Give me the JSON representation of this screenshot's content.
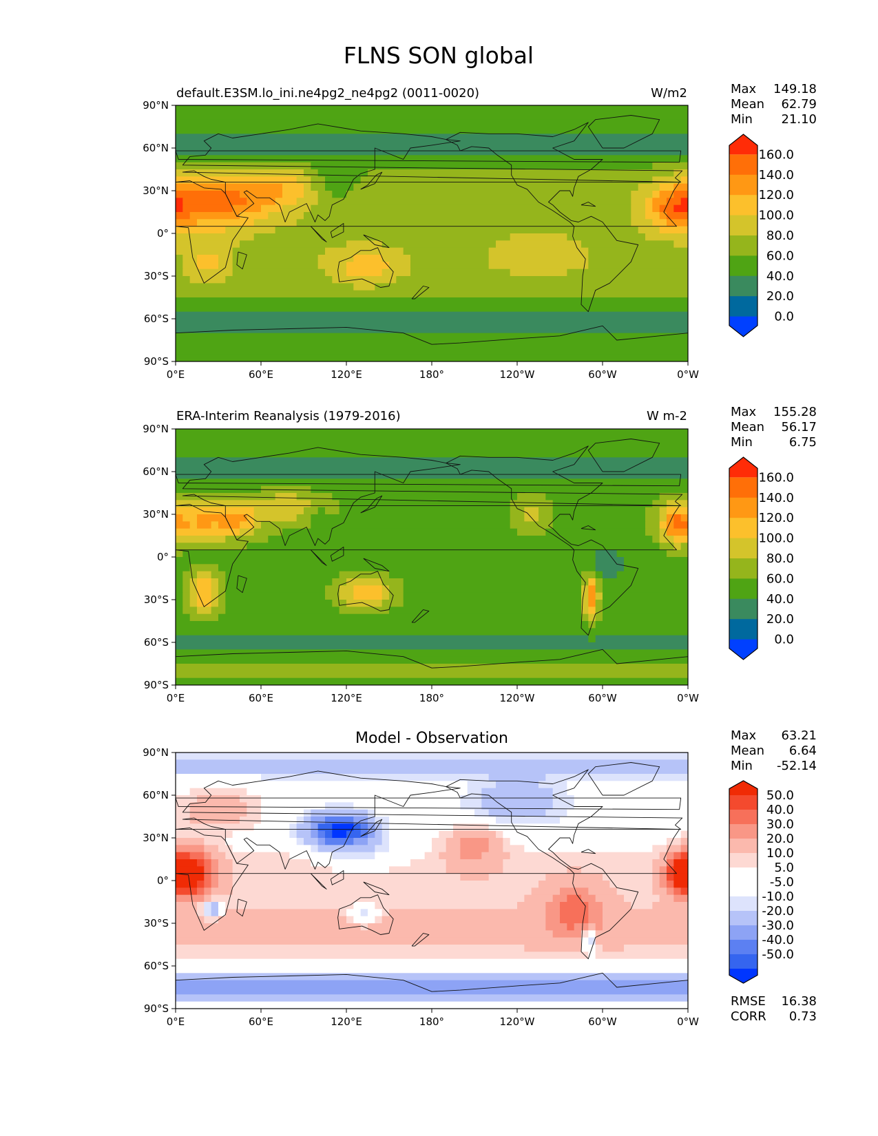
{
  "title": "FLNS SON global",
  "axis_ticks": {
    "lat": [
      "90°N",
      "60°N",
      "30°N",
      "0°",
      "30°S",
      "60°S",
      "90°S"
    ],
    "lon": [
      "0°E",
      "60°E",
      "120°E",
      "180°",
      "120°W",
      "60°W",
      "0°W"
    ]
  },
  "stat_labels": {
    "max": "Max",
    "mean": "Mean",
    "min": "Min",
    "rmse": "RMSE",
    "corr": "CORR"
  },
  "chart_data": [
    {
      "type": "heatmap",
      "id": "model",
      "title_left": "default.E3SM.lo_ini.ne4pg2_ne4pg2 (0011-0020)",
      "title_right": "W/m2",
      "stats": {
        "max": "149.18",
        "mean": "62.79",
        "min": "21.10"
      },
      "levels": [
        "160.0",
        "140.0",
        "120.0",
        "100.0",
        "80.0",
        "60.0",
        "40.0",
        "20.0",
        "0.0"
      ],
      "colors": [
        "#0040ff",
        "#00699e",
        "#3a8a5e",
        "#4fa414",
        "#95b51c",
        "#d4c42b",
        "#fcc02c",
        "#ff9814",
        "#ff6f08",
        "#ff2c07"
      ],
      "field": "model",
      "ylim": [
        -90,
        90
      ],
      "xlim": [
        0,
        360
      ]
    },
    {
      "type": "heatmap",
      "id": "obs",
      "title_left": "ERA-Interim Reanalysis (1979-2016)",
      "title_right": "W m-2",
      "stats": {
        "max": "155.28",
        "mean": "56.17",
        "min": "6.75"
      },
      "levels": [
        "160.0",
        "140.0",
        "120.0",
        "100.0",
        "80.0",
        "60.0",
        "40.0",
        "20.0",
        "0.0"
      ],
      "colors": [
        "#0040ff",
        "#00699e",
        "#3a8a5e",
        "#4fa414",
        "#95b51c",
        "#d4c42b",
        "#fcc02c",
        "#ff9814",
        "#ff6f08",
        "#ff2c07"
      ],
      "field": "obs",
      "ylim": [
        -90,
        90
      ],
      "xlim": [
        0,
        360
      ]
    },
    {
      "type": "heatmap",
      "id": "diff",
      "title_center": "Model - Observation",
      "stats": {
        "max": "63.21",
        "mean": "6.64",
        "min": "-52.14",
        "rmse": "16.38",
        "corr": "0.73"
      },
      "levels": [
        "50.0",
        "40.0",
        "30.0",
        "20.0",
        "10.0",
        "5.0",
        "-5.0",
        "-10.0",
        "-20.0",
        "-30.0",
        "-40.0",
        "-50.0"
      ],
      "colors": [
        "#0036ff",
        "#3565ef",
        "#5c80f2",
        "#8da3f5",
        "#b6c3f8",
        "#dde3fc",
        "#ffffff",
        "#ffffff",
        "#fdd9d3",
        "#fbb9ad",
        "#f99786",
        "#f7705a",
        "#f44a2e",
        "#f02b05"
      ],
      "field": "diff",
      "ylim": [
        -90,
        90
      ],
      "xlim": [
        0,
        360
      ]
    }
  ]
}
